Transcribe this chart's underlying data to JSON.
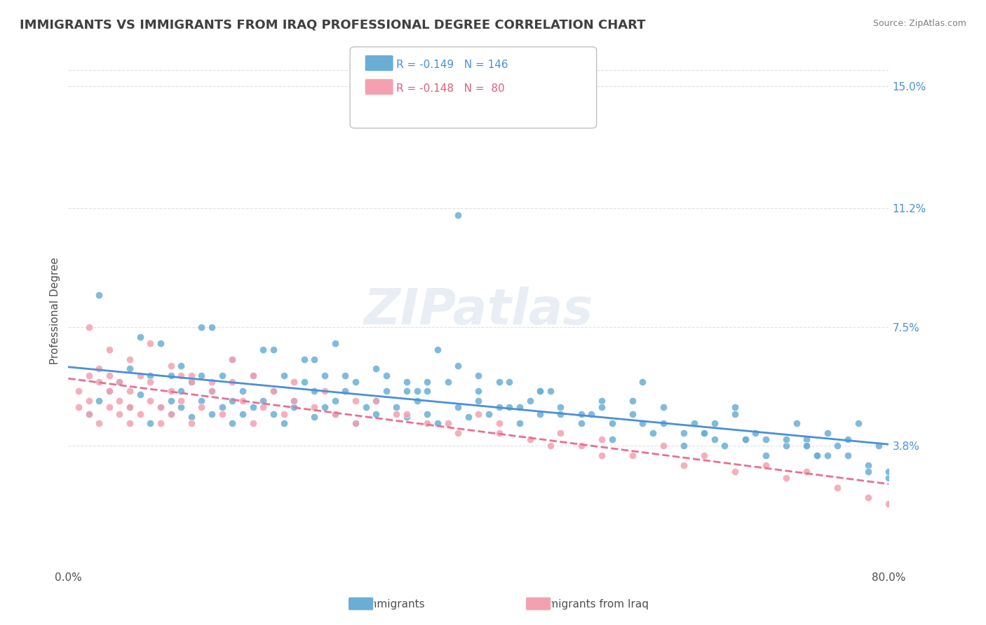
{
  "title": "IMMIGRANTS VS IMMIGRANTS FROM IRAQ PROFESSIONAL DEGREE CORRELATION CHART",
  "source": "Source: ZipAtlas.com",
  "xlabel": "",
  "ylabel": "Professional Degree",
  "right_yticks": [
    0.038,
    0.075,
    0.112,
    0.15
  ],
  "right_yticklabels": [
    "3.8%",
    "7.5%",
    "11.2%",
    "15.0%"
  ],
  "xlim": [
    0.0,
    0.8
  ],
  "ylim": [
    0.0,
    0.16
  ],
  "xticks": [
    0.0,
    0.1,
    0.2,
    0.3,
    0.4,
    0.5,
    0.6,
    0.7,
    0.8
  ],
  "xticklabels": [
    "0.0%",
    "",
    "",
    "",
    "",
    "",
    "",
    "",
    "80.0%"
  ],
  "blue_color": "#6aaed6",
  "pink_color": "#f4a0b0",
  "blue_line_color": "#4a90d9",
  "pink_line_color": "#e87090",
  "legend_r1": "R = -0.149",
  "legend_n1": "N = 146",
  "legend_r2": "R = -0.148",
  "legend_n2": "N =  80",
  "watermark": "ZIPatlas",
  "blue_scatter_x": [
    0.02,
    0.03,
    0.04,
    0.05,
    0.06,
    0.06,
    0.07,
    0.08,
    0.08,
    0.09,
    0.1,
    0.1,
    0.1,
    0.11,
    0.11,
    0.12,
    0.12,
    0.13,
    0.13,
    0.14,
    0.14,
    0.15,
    0.15,
    0.16,
    0.16,
    0.17,
    0.17,
    0.18,
    0.18,
    0.19,
    0.2,
    0.2,
    0.21,
    0.21,
    0.22,
    0.22,
    0.23,
    0.24,
    0.24,
    0.25,
    0.25,
    0.26,
    0.26,
    0.27,
    0.28,
    0.28,
    0.29,
    0.3,
    0.3,
    0.31,
    0.31,
    0.32,
    0.33,
    0.33,
    0.34,
    0.35,
    0.35,
    0.36,
    0.37,
    0.38,
    0.39,
    0.4,
    0.4,
    0.41,
    0.42,
    0.43,
    0.44,
    0.45,
    0.46,
    0.47,
    0.48,
    0.5,
    0.51,
    0.52,
    0.53,
    0.55,
    0.56,
    0.57,
    0.58,
    0.6,
    0.61,
    0.62,
    0.64,
    0.65,
    0.66,
    0.67,
    0.68,
    0.7,
    0.71,
    0.72,
    0.73,
    0.74,
    0.75,
    0.76,
    0.77,
    0.78,
    0.79,
    0.14,
    0.2,
    0.16,
    0.09,
    0.11,
    0.3,
    0.35,
    0.24,
    0.46,
    0.55,
    0.63,
    0.72,
    0.65,
    0.4,
    0.5,
    0.6,
    0.38,
    0.42,
    0.52,
    0.68,
    0.74,
    0.78,
    0.8,
    0.07,
    0.19,
    0.27,
    0.34,
    0.44,
    0.58,
    0.7,
    0.76,
    0.8,
    0.03,
    0.13,
    0.23,
    0.33,
    0.43,
    0.53,
    0.63,
    0.73,
    0.26,
    0.48,
    0.56,
    0.66,
    0.36,
    0.46,
    0.62,
    0.72,
    0.38
  ],
  "blue_scatter_y": [
    0.048,
    0.052,
    0.055,
    0.058,
    0.05,
    0.062,
    0.054,
    0.06,
    0.045,
    0.05,
    0.052,
    0.048,
    0.06,
    0.055,
    0.05,
    0.058,
    0.047,
    0.052,
    0.06,
    0.048,
    0.055,
    0.05,
    0.06,
    0.052,
    0.045,
    0.055,
    0.048,
    0.06,
    0.05,
    0.052,
    0.048,
    0.055,
    0.06,
    0.045,
    0.052,
    0.05,
    0.058,
    0.047,
    0.055,
    0.05,
    0.06,
    0.048,
    0.052,
    0.055,
    0.045,
    0.058,
    0.05,
    0.052,
    0.048,
    0.06,
    0.055,
    0.05,
    0.047,
    0.058,
    0.052,
    0.048,
    0.055,
    0.045,
    0.058,
    0.05,
    0.047,
    0.052,
    0.055,
    0.048,
    0.05,
    0.058,
    0.045,
    0.052,
    0.048,
    0.055,
    0.05,
    0.045,
    0.048,
    0.052,
    0.04,
    0.048,
    0.045,
    0.042,
    0.05,
    0.038,
    0.045,
    0.042,
    0.038,
    0.048,
    0.04,
    0.042,
    0.035,
    0.038,
    0.045,
    0.04,
    0.035,
    0.042,
    0.038,
    0.04,
    0.045,
    0.032,
    0.038,
    0.075,
    0.068,
    0.065,
    0.07,
    0.063,
    0.062,
    0.058,
    0.065,
    0.055,
    0.052,
    0.045,
    0.038,
    0.05,
    0.06,
    0.048,
    0.042,
    0.063,
    0.058,
    0.05,
    0.04,
    0.035,
    0.03,
    0.028,
    0.072,
    0.068,
    0.06,
    0.055,
    0.05,
    0.045,
    0.04,
    0.035,
    0.03,
    0.085,
    0.075,
    0.065,
    0.055,
    0.05,
    0.045,
    0.04,
    0.035,
    0.07,
    0.048,
    0.058,
    0.04,
    0.068,
    0.055,
    0.042,
    0.038,
    0.11
  ],
  "pink_scatter_x": [
    0.01,
    0.01,
    0.02,
    0.02,
    0.02,
    0.03,
    0.03,
    0.03,
    0.04,
    0.04,
    0.04,
    0.05,
    0.05,
    0.05,
    0.06,
    0.06,
    0.06,
    0.07,
    0.07,
    0.08,
    0.08,
    0.09,
    0.09,
    0.1,
    0.1,
    0.11,
    0.11,
    0.12,
    0.12,
    0.13,
    0.14,
    0.15,
    0.16,
    0.17,
    0.18,
    0.19,
    0.2,
    0.21,
    0.22,
    0.24,
    0.26,
    0.28,
    0.3,
    0.32,
    0.35,
    0.38,
    0.4,
    0.42,
    0.45,
    0.48,
    0.5,
    0.52,
    0.55,
    0.58,
    0.6,
    0.62,
    0.65,
    0.68,
    0.7,
    0.72,
    0.75,
    0.78,
    0.8,
    0.02,
    0.04,
    0.06,
    0.08,
    0.1,
    0.12,
    0.14,
    0.16,
    0.18,
    0.22,
    0.25,
    0.28,
    0.33,
    0.37,
    0.42,
    0.47,
    0.52
  ],
  "pink_scatter_y": [
    0.05,
    0.055,
    0.048,
    0.06,
    0.052,
    0.058,
    0.045,
    0.062,
    0.05,
    0.055,
    0.06,
    0.048,
    0.052,
    0.058,
    0.045,
    0.05,
    0.055,
    0.06,
    0.048,
    0.052,
    0.058,
    0.045,
    0.05,
    0.055,
    0.048,
    0.06,
    0.052,
    0.045,
    0.058,
    0.05,
    0.055,
    0.048,
    0.058,
    0.052,
    0.045,
    0.05,
    0.055,
    0.048,
    0.052,
    0.05,
    0.048,
    0.045,
    0.052,
    0.048,
    0.045,
    0.042,
    0.048,
    0.045,
    0.04,
    0.042,
    0.038,
    0.04,
    0.035,
    0.038,
    0.032,
    0.035,
    0.03,
    0.032,
    0.028,
    0.03,
    0.025,
    0.022,
    0.02,
    0.075,
    0.068,
    0.065,
    0.07,
    0.063,
    0.06,
    0.058,
    0.065,
    0.06,
    0.058,
    0.055,
    0.052,
    0.048,
    0.045,
    0.042,
    0.038,
    0.035
  ],
  "grid_color": "#e0e0e0",
  "background_color": "#ffffff",
  "title_color": "#404040",
  "source_color": "#808080"
}
